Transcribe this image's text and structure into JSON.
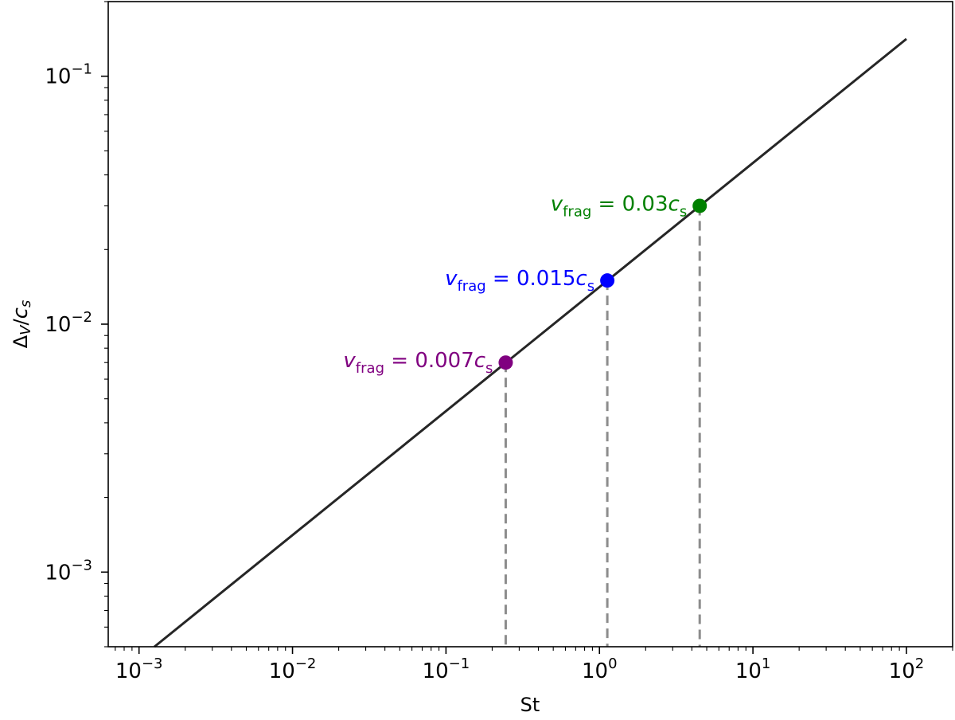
{
  "chart_data": {
    "type": "line",
    "title": "",
    "xlabel": "St",
    "ylabel": {
      "main": "Δ",
      "sub": "V",
      "slash": "/",
      "var": "c",
      "var_sub": "s"
    },
    "xscale": "log",
    "yscale": "log",
    "xlim": [
      0.00063,
      200
    ],
    "ylim": [
      0.0005,
      0.2
    ],
    "grid": false,
    "x_ticks": [
      {
        "value": 0.001,
        "base": "10",
        "exp": "−3"
      },
      {
        "value": 0.01,
        "base": "10",
        "exp": "−2"
      },
      {
        "value": 0.1,
        "base": "10",
        "exp": "−1"
      },
      {
        "value": 1,
        "base": "10",
        "exp": "0"
      },
      {
        "value": 10,
        "base": "10",
        "exp": "1"
      },
      {
        "value": 100,
        "base": "10",
        "exp": "2"
      }
    ],
    "y_ticks": [
      {
        "value": 0.001,
        "base": "10",
        "exp": "−3"
      },
      {
        "value": 0.01,
        "base": "10",
        "exp": "−2"
      },
      {
        "value": 0.1,
        "base": "10",
        "exp": "−1"
      }
    ],
    "series": [
      {
        "color": "#262626",
        "x": [
          0.00126,
          100
        ],
        "y": [
          0.0005,
          0.1414
        ]
      }
    ],
    "points": [
      {
        "x": 0.245,
        "y": 0.007,
        "color": "#800080",
        "label": {
          "v": "v",
          "sub": "frag",
          "eq": " = 0.007",
          "c": "c",
          "c_sub": "s"
        }
      },
      {
        "x": 1.125,
        "y": 0.015,
        "color": "#0000ff",
        "label": {
          "v": "v",
          "sub": "frag",
          "eq": " = 0.015",
          "c": "c",
          "c_sub": "s"
        }
      },
      {
        "x": 4.5,
        "y": 0.03,
        "color": "#008000",
        "label": {
          "v": "v",
          "sub": "frag",
          "eq": " = 0.03",
          "c": "c",
          "c_sub": "s"
        }
      }
    ],
    "dashed_line_color": "#8c8c8c"
  }
}
